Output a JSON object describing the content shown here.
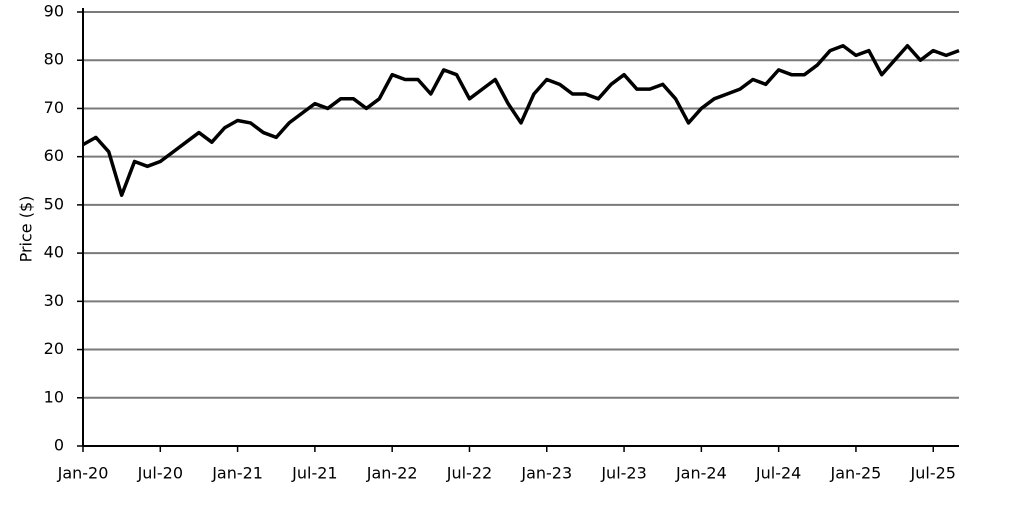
{
  "chart_data": {
    "type": "line",
    "y_label": "Price ($)",
    "x": [
      "2020-01",
      "2020-02",
      "2020-03",
      "2020-04",
      "2020-05",
      "2020-06",
      "2020-07",
      "2020-08",
      "2020-09",
      "2020-10",
      "2020-11",
      "2020-12",
      "2021-01",
      "2021-02",
      "2021-03",
      "2021-04",
      "2021-05",
      "2021-06",
      "2021-07",
      "2021-08",
      "2021-09",
      "2021-10",
      "2021-11",
      "2021-12",
      "2022-01",
      "2022-02",
      "2022-03",
      "2022-04",
      "2022-05",
      "2022-06",
      "2022-07",
      "2022-08",
      "2022-09",
      "2022-10",
      "2022-11",
      "2022-12",
      "2023-01",
      "2023-02",
      "2023-03",
      "2023-04",
      "2023-05",
      "2023-06",
      "2023-07",
      "2023-08",
      "2023-09",
      "2023-10",
      "2023-11",
      "2023-12",
      "2024-01",
      "2024-02",
      "2024-03",
      "2024-04",
      "2024-05",
      "2024-06",
      "2024-07",
      "2024-08",
      "2024-09",
      "2024-10",
      "2024-11",
      "2024-12",
      "2025-01",
      "2025-02",
      "2025-03",
      "2025-04",
      "2025-05",
      "2025-06",
      "2025-07",
      "2025-08",
      "2025-09"
    ],
    "series": [
      {
        "color": "#000000",
        "values": [
          62.5,
          64,
          61,
          52,
          59,
          58,
          59,
          61,
          63,
          65,
          63,
          66,
          67.5,
          67,
          65,
          64,
          67,
          69,
          71,
          70,
          72,
          72,
          70,
          72,
          77,
          76,
          76,
          73,
          78,
          77,
          72,
          74,
          76,
          71,
          67,
          73,
          76,
          75,
          73,
          73,
          72,
          75,
          77,
          74,
          74,
          75,
          72,
          67,
          70,
          72,
          73,
          74,
          76,
          75,
          78,
          77,
          77,
          79,
          82,
          83,
          81,
          82,
          77,
          80,
          83,
          80,
          82,
          81,
          82
        ]
      }
    ],
    "xlim": [
      "2020-01",
      "2025-09"
    ],
    "xticks": [
      {
        "value": "2020-01",
        "label": "Jan-20"
      },
      {
        "value": "2020-07",
        "label": "Jul-20"
      },
      {
        "value": "2021-01",
        "label": "Jan-21"
      },
      {
        "value": "2021-07",
        "label": "Jul-21"
      },
      {
        "value": "2022-01",
        "label": "Jan-22"
      },
      {
        "value": "2022-07",
        "label": "Jul-22"
      },
      {
        "value": "2023-01",
        "label": "Jan-23"
      },
      {
        "value": "2023-07",
        "label": "Jul-23"
      },
      {
        "value": "2024-01",
        "label": "Jan-24"
      },
      {
        "value": "2024-07",
        "label": "Jul-24"
      },
      {
        "value": "2025-01",
        "label": "Jan-25"
      },
      {
        "value": "2025-07",
        "label": "Jul-25"
      }
    ],
    "ylim": [
      0,
      90
    ],
    "yticks": [
      0,
      10,
      20,
      30,
      40,
      50,
      60,
      70,
      80,
      90
    ],
    "grid": true
  }
}
